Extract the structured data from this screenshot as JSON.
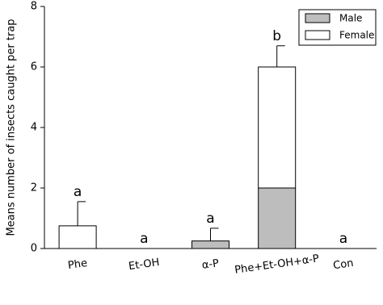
{
  "chart_data": {
    "type": "stacked_bar",
    "ylabel": "Means number of insects caught per trap",
    "categories": [
      "Phe",
      "Et-OH",
      "α-P",
      "Phe+Et-OH+α-P",
      "Con"
    ],
    "series": [
      {
        "name": "Male",
        "color": "#bdbdbd",
        "values": [
          0,
          0,
          0.25,
          2,
          0
        ]
      },
      {
        "name": "Female",
        "color": "#ffffff",
        "values": [
          0.75,
          0,
          0,
          4,
          0
        ]
      }
    ],
    "errors": [
      0.8,
      0,
      0.42,
      0.7,
      0
    ],
    "annotations": [
      "a",
      "a",
      "a",
      "b",
      "a"
    ],
    "ylim": [
      0,
      8
    ],
    "yticks": [
      0,
      2,
      4,
      6,
      8
    ],
    "legend": "upper right"
  }
}
